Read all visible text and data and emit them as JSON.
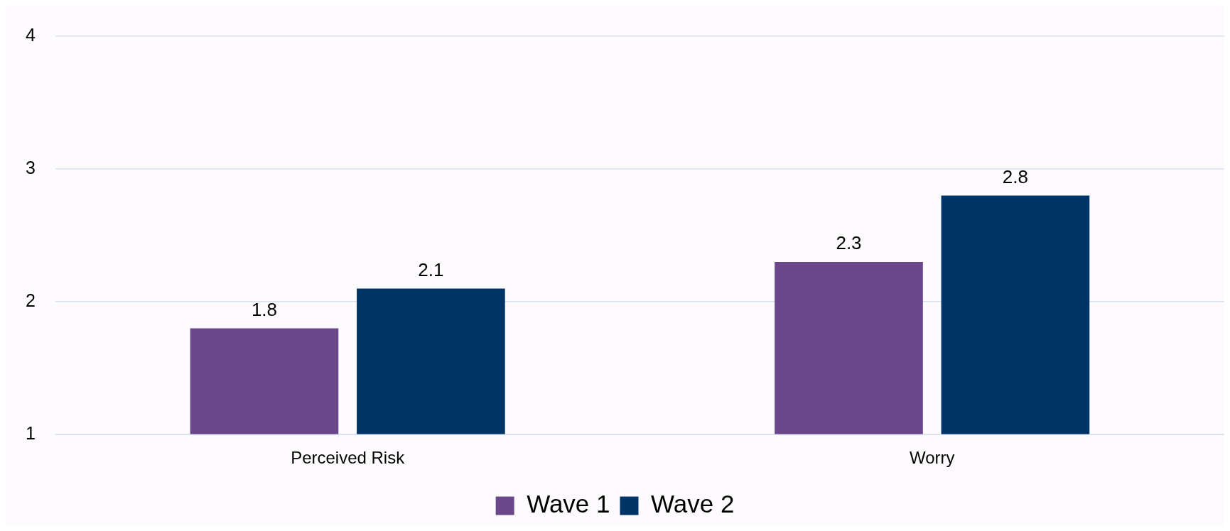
{
  "chart_data": {
    "type": "bar",
    "categories": [
      "Perceived Risk",
      "Worry"
    ],
    "series": [
      {
        "name": "Wave 1",
        "color": "#6a478b",
        "values": [
          1.8,
          2.3
        ]
      },
      {
        "name": "Wave 2",
        "color": "#003366",
        "values": [
          2.1,
          2.8
        ]
      }
    ],
    "ylim": [
      1,
      4
    ],
    "yticks": [
      1,
      2,
      3,
      4
    ],
    "grid": "y",
    "legend": "bottom",
    "data_labels": true
  }
}
